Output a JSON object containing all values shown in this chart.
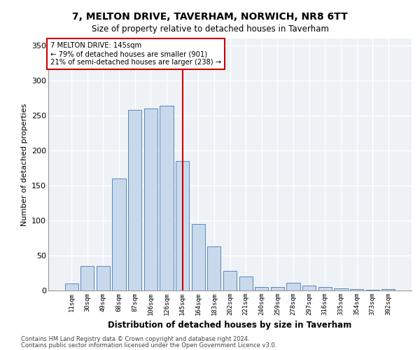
{
  "title1": "7, MELTON DRIVE, TAVERHAM, NORWICH, NR8 6TT",
  "title2": "Size of property relative to detached houses in Taverham",
  "xlabel": "Distribution of detached houses by size in Taverham",
  "ylabel": "Number of detached properties",
  "categories": [
    "11sqm",
    "30sqm",
    "49sqm",
    "68sqm",
    "87sqm",
    "106sqm",
    "126sqm",
    "145sqm",
    "164sqm",
    "183sqm",
    "202sqm",
    "221sqm",
    "240sqm",
    "259sqm",
    "278sqm",
    "297sqm",
    "316sqm",
    "335sqm",
    "354sqm",
    "373sqm",
    "392sqm"
  ],
  "values": [
    10,
    35,
    35,
    160,
    258,
    260,
    264,
    185,
    95,
    63,
    28,
    20,
    5,
    5,
    11,
    7,
    5,
    3,
    2,
    1,
    2
  ],
  "bar_color": "#c9d9ec",
  "bar_edge_color": "#5588bb",
  "property_line_x": 7,
  "annotation_line1": "7 MELTON DRIVE: 145sqm",
  "annotation_line2": "← 79% of detached houses are smaller (901)",
  "annotation_line3": "21% of semi-detached houses are larger (238) →",
  "annotation_box_color": "#cc0000",
  "ylim": [
    0,
    360
  ],
  "yticks": [
    0,
    50,
    100,
    150,
    200,
    250,
    300,
    350
  ],
  "bg_color": "#eef2f7",
  "grid_color": "#ffffff",
  "footer1": "Contains HM Land Registry data © Crown copyright and database right 2024.",
  "footer2": "Contains public sector information licensed under the Open Government Licence v3.0."
}
